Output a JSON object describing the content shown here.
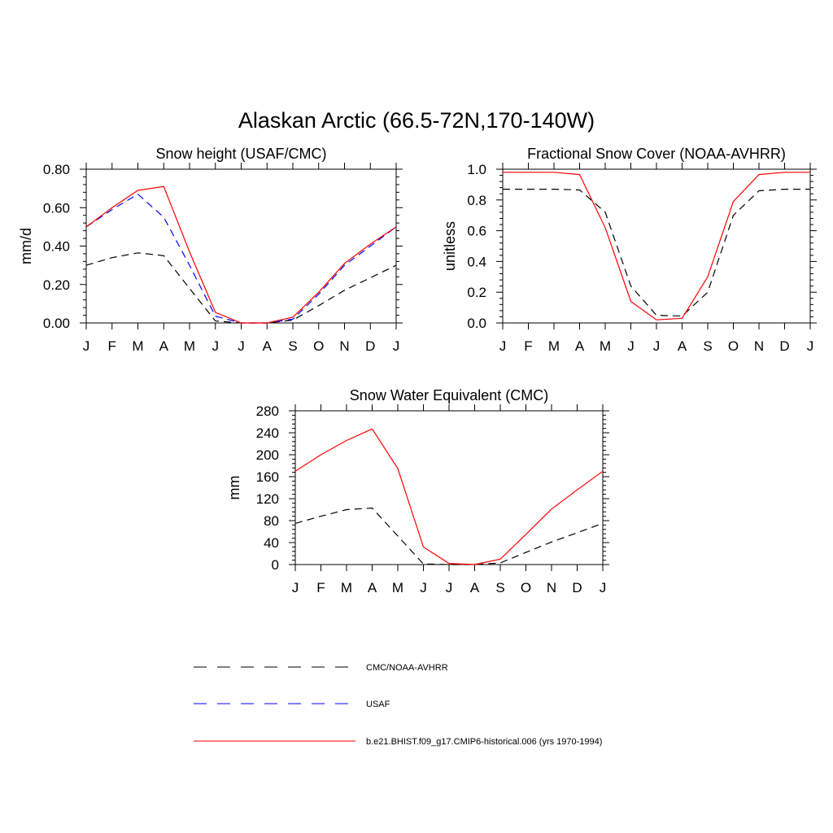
{
  "figure": {
    "title": "Alaskan Arctic (66.5-72N,170-140W)"
  },
  "colors": {
    "obs": "#000000",
    "usaf": "#0000ff",
    "model": "#ff0000"
  },
  "legend": {
    "items": [
      {
        "label": "CMC/NOAA-AVHRR",
        "style": "dashed",
        "color": "#000000"
      },
      {
        "label": "USAF",
        "style": "dashed",
        "color": "#0000ff"
      },
      {
        "label": "b.e21.BHIST.f09_g17.CMIP6-historical.006 (yrs 1970-1994)",
        "style": "solid",
        "color": "#ff0000"
      }
    ]
  },
  "chart_data": [
    {
      "type": "line",
      "title": "Snow height (USAF/CMC)",
      "xlabel": "",
      "ylabel": "mm/d",
      "categories": [
        "J",
        "F",
        "M",
        "A",
        "M",
        "J",
        "J",
        "A",
        "S",
        "O",
        "N",
        "D",
        "J"
      ],
      "ylim": [
        0,
        0.8
      ],
      "yticks": [
        0.0,
        0.2,
        0.4,
        0.6,
        0.8
      ],
      "ytick_labels": [
        "0.00",
        "0.20",
        "0.40",
        "0.60",
        "0.80"
      ],
      "series": [
        {
          "key": "obs",
          "values": [
            0.3,
            0.34,
            0.365,
            0.35,
            0.18,
            0.01,
            0.0,
            0.0,
            0.015,
            0.09,
            0.17,
            0.235,
            0.3
          ]
        },
        {
          "key": "usaf",
          "values": [
            0.5,
            0.59,
            0.67,
            0.55,
            0.3,
            0.035,
            0.0,
            0.0,
            0.02,
            0.15,
            0.3,
            0.4,
            0.5
          ]
        },
        {
          "key": "model",
          "values": [
            0.5,
            0.6,
            0.69,
            0.71,
            0.37,
            0.055,
            0.0,
            0.0,
            0.03,
            0.16,
            0.31,
            0.41,
            0.5
          ]
        }
      ]
    },
    {
      "type": "line",
      "title": "Fractional Snow Cover (NOAA-AVHRR)",
      "xlabel": "",
      "ylabel": "unitless",
      "categories": [
        "J",
        "F",
        "M",
        "A",
        "M",
        "J",
        "J",
        "A",
        "S",
        "O",
        "N",
        "D",
        "J"
      ],
      "ylim": [
        0,
        1.0
      ],
      "yticks": [
        0.0,
        0.2,
        0.4,
        0.6,
        0.8,
        1.0
      ],
      "ytick_labels": [
        "0.0",
        "0.2",
        "0.4",
        "0.6",
        "0.8",
        "1.0"
      ],
      "series": [
        {
          "key": "obs",
          "values": [
            0.87,
            0.87,
            0.87,
            0.865,
            0.72,
            0.24,
            0.05,
            0.045,
            0.2,
            0.7,
            0.86,
            0.87,
            0.87
          ]
        },
        {
          "key": "model",
          "values": [
            0.98,
            0.98,
            0.98,
            0.965,
            0.62,
            0.14,
            0.02,
            0.03,
            0.3,
            0.79,
            0.965,
            0.98,
            0.98
          ]
        }
      ]
    },
    {
      "type": "line",
      "title": "Snow Water Equivalent (CMC)",
      "xlabel": "",
      "ylabel": "mm",
      "categories": [
        "J",
        "F",
        "M",
        "A",
        "M",
        "J",
        "J",
        "A",
        "S",
        "O",
        "N",
        "D",
        "J"
      ],
      "ylim": [
        0,
        280
      ],
      "yticks": [
        0,
        40,
        80,
        120,
        160,
        200,
        240,
        280
      ],
      "ytick_labels": [
        "0",
        "40",
        "80",
        "120",
        "160",
        "200",
        "240",
        "280"
      ],
      "series": [
        {
          "key": "obs",
          "values": [
            75,
            88,
            100,
            103,
            52,
            1,
            0,
            0,
            3,
            22,
            41,
            58,
            75
          ]
        },
        {
          "key": "model",
          "values": [
            170,
            200,
            226,
            247,
            175,
            32,
            2,
            0,
            10,
            55,
            101,
            136,
            170
          ]
        }
      ]
    }
  ]
}
